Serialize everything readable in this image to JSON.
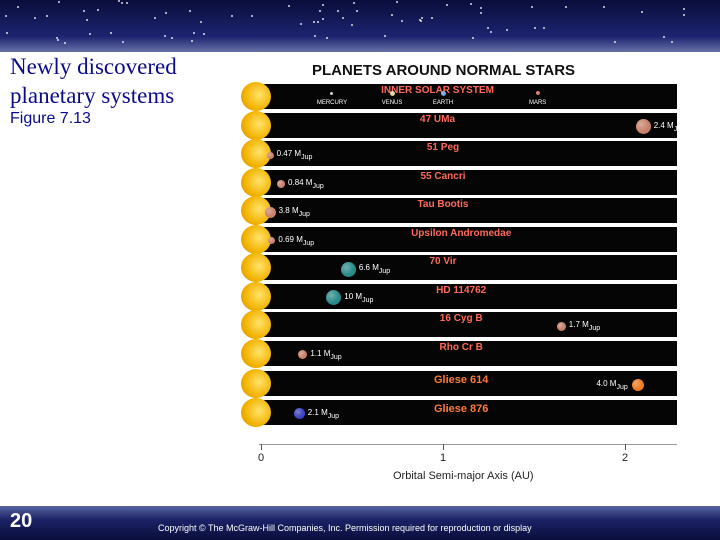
{
  "slide": {
    "title": "Newly discovered planetary systems",
    "figure_label": "Figure 7.13",
    "number": "20",
    "copyright": "Copyright © The McGraw-Hill Companies, Inc. Permission required for reproduction or display"
  },
  "figure": {
    "title": "PLANETS AROUND NORMAL STARS",
    "axis": {
      "title": "Orbital Semi-major Axis (AU)",
      "ticks": [
        {
          "value": 0,
          "label": "0"
        },
        {
          "value": 1,
          "label": "1"
        },
        {
          "value": 2,
          "label": "2"
        }
      ],
      "range_au": [
        0,
        2.3
      ]
    },
    "colors": {
      "sun": "#f2b200",
      "row_bg": "#050505",
      "system_name": "#ff6a5a",
      "gliese_name": "#ff7a3a"
    },
    "systems": [
      {
        "name": "INNER SOLAR SYSTEM",
        "name_au": 0.97,
        "inner": true,
        "planets": [
          {
            "label": "MERCURY",
            "au": 0.39,
            "color": "#cccccc",
            "size": 3
          },
          {
            "label": "VENUS",
            "au": 0.72,
            "color": "#e0d4a0",
            "size": 5
          },
          {
            "label": "EARTH",
            "au": 1.0,
            "color": "#6aa0e6",
            "size": 5
          },
          {
            "label": "MARS",
            "au": 1.52,
            "color": "#d07050",
            "size": 4
          }
        ]
      },
      {
        "name": "47 UMa",
        "name_au": 0.97,
        "planets": [
          {
            "mass": "2.4 M",
            "sub": "Jup",
            "au": 2.1,
            "color": "#c8806a",
            "size": 15,
            "side": "right"
          }
        ]
      },
      {
        "name": "51 Peg",
        "name_au": 1.0,
        "planets": [
          {
            "mass": "0.47 M",
            "sub": "Jup",
            "au": 0.05,
            "color": "#c8806a",
            "size": 7,
            "side": "right"
          }
        ]
      },
      {
        "name": "55 Cancri",
        "name_au": 1.0,
        "planets": [
          {
            "mass": "0.84 M",
            "sub": "Jup",
            "au": 0.11,
            "color": "#c8806a",
            "size": 8,
            "side": "right"
          }
        ]
      },
      {
        "name": "Tau Bootis",
        "name_au": 1.0,
        "planets": [
          {
            "mass": "3.8 M",
            "sub": "Jup",
            "au": 0.05,
            "color": "#c8806a",
            "size": 11,
            "side": "right"
          }
        ]
      },
      {
        "name": "Upsilon Andromedae",
        "name_au": 1.1,
        "planets": [
          {
            "mass": "0.69 M",
            "sub": "Jup",
            "au": 0.06,
            "color": "#c8806a",
            "size": 7,
            "side": "right"
          }
        ]
      },
      {
        "name": "70 Vir",
        "name_au": 1.0,
        "planets": [
          {
            "mass": "6.6 M",
            "sub": "Jup",
            "au": 0.48,
            "color": "#2a8a8a",
            "size": 15,
            "side": "right"
          }
        ]
      },
      {
        "name": "HD 114762",
        "name_au": 1.1,
        "planets": [
          {
            "mass": "10 M",
            "sub": "Jup",
            "au": 0.4,
            "color": "#2a8a8a",
            "size": 15,
            "side": "right"
          }
        ]
      },
      {
        "name": "16 Cyg B",
        "name_au": 1.1,
        "planets": [
          {
            "mass": "1.7 M",
            "sub": "Jup",
            "au": 1.65,
            "color": "#c8806a",
            "size": 9,
            "side": "right"
          }
        ]
      },
      {
        "name": "Rho Cr B",
        "name_au": 1.1,
        "planets": [
          {
            "mass": "1.1 M",
            "sub": "Jup",
            "au": 0.23,
            "color": "#c8806a",
            "size": 9,
            "side": "right"
          }
        ]
      },
      {
        "name": "Gliese 614",
        "name_au": 1.1,
        "gliese": true,
        "planets": [
          {
            "mass": "4.0 M",
            "sub": "Jup",
            "au": 2.07,
            "color": "#f07a20",
            "size": 12,
            "side": "left"
          }
        ]
      },
      {
        "name": "Gliese 876",
        "name_au": 1.1,
        "gliese": true,
        "planets": [
          {
            "mass": "2.1 M",
            "sub": "Jup",
            "au": 0.21,
            "color": "#3a44c0",
            "size": 11,
            "side": "right"
          }
        ]
      }
    ]
  }
}
